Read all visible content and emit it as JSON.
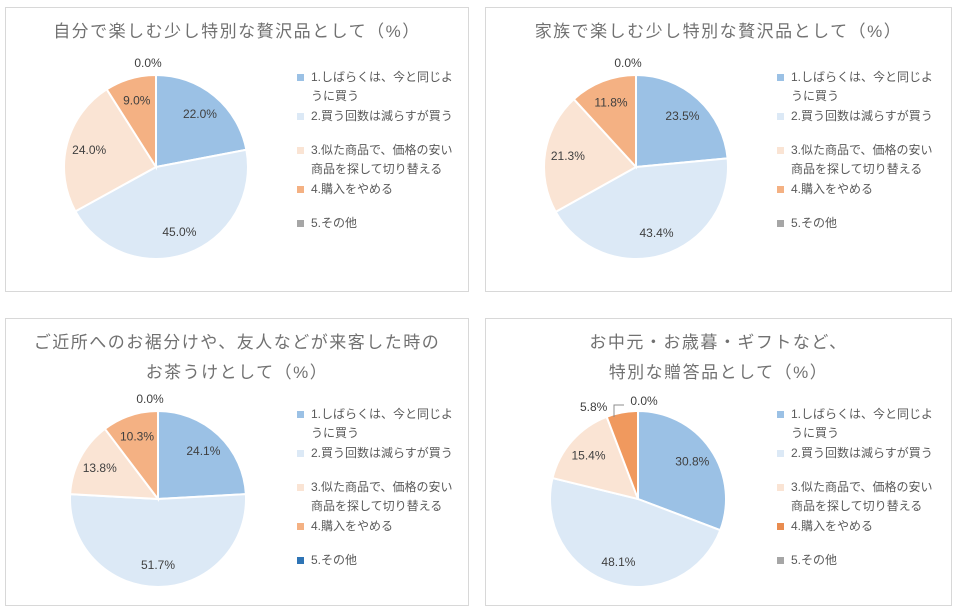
{
  "page": {
    "background": "#FFFFFF",
    "panel_border": "#D8D8D8",
    "title_color": "#717171",
    "data_label_color": "#3F3F3F",
    "legend_text_color": "#595959"
  },
  "chart_data": [
    {
      "type": "pie",
      "title": "自分で楽しむ少し特別な贅沢品として（%）",
      "title_lines": [
        "自分で楽しむ少し特別な贅沢品として（%）"
      ],
      "categories": [
        "1.しばらくは、今と同じように買う",
        "2.買う回数は減らすが買う",
        "3.似た商品で、価格の安い商品を探して切り替える",
        "4.購入をやめる",
        "5.その他"
      ],
      "values": [
        22.0,
        45.0,
        24.0,
        9.0,
        0.0
      ],
      "data_labels": [
        "22.0%",
        "45.0%",
        "24.0%",
        "9.0%",
        "0.0%"
      ],
      "slice_colors": [
        "#9BC1E5",
        "#DCE9F6",
        "#FAE4D4",
        "#F4B183",
        "#A6A6A6"
      ],
      "legend_marker_colors": [
        "#9BC1E5",
        "#DCE9F6",
        "#FAE4D4",
        "#F4B183",
        "#A6A6A6"
      ],
      "legend_position": "right",
      "start_angle_deg": 0,
      "direction": "clockwise"
    },
    {
      "type": "pie",
      "title": "家族で楽しむ少し特別な贅沢品として（%）",
      "title_lines": [
        "家族で楽しむ少し特別な贅沢品として（%）"
      ],
      "categories": [
        "1.しばらくは、今と同じように買う",
        "2.買う回数は減らすが買う",
        "3.似た商品で、価格の安い商品を探して切り替える",
        "4.購入をやめる",
        "5.その他"
      ],
      "values": [
        23.5,
        43.4,
        21.3,
        11.8,
        0.0
      ],
      "data_labels": [
        "23.5%",
        "43.4%",
        "21.3%",
        "11.8%",
        "0.0%"
      ],
      "slice_colors": [
        "#9BC1E5",
        "#DCE9F6",
        "#FAE4D4",
        "#F4B183",
        "#A6A6A6"
      ],
      "legend_marker_colors": [
        "#9BC1E5",
        "#DCE9F6",
        "#FAE4D4",
        "#F4B183",
        "#A6A6A6"
      ],
      "legend_position": "right",
      "start_angle_deg": 0,
      "direction": "clockwise"
    },
    {
      "type": "pie",
      "title": "ご近所へのお裾分けや、友人などが来客した時の お茶うけとして（%）",
      "title_lines": [
        "ご近所へのお裾分けや、友人などが来客した時の",
        "お茶うけとして（%）"
      ],
      "categories": [
        "1.しばらくは、今と同じように買う",
        "2.買う回数は減らすが買う",
        "3.似た商品で、価格の安い商品を探して切り替える",
        "4.購入をやめる",
        "5.その他"
      ],
      "values": [
        24.1,
        51.7,
        13.8,
        10.3,
        0.0
      ],
      "data_labels": [
        "24.1%",
        "51.7%",
        "13.8%",
        "10.3%",
        "0.0%"
      ],
      "slice_colors": [
        "#9BC1E5",
        "#DCE9F6",
        "#FAE4D4",
        "#F4B183",
        "#2E74B5"
      ],
      "legend_marker_colors": [
        "#9BC1E5",
        "#DCE9F6",
        "#FAE4D4",
        "#F4B183",
        "#2E74B5"
      ],
      "legend_position": "right",
      "start_angle_deg": 0,
      "direction": "clockwise"
    },
    {
      "type": "pie",
      "title": "お中元・お歳暮・ギフトなど、 特別な贈答品として（%）",
      "title_lines": [
        "お中元・お歳暮・ギフトなど、",
        "特別な贈答品として（%）"
      ],
      "categories": [
        "1.しばらくは、今と同じように買う",
        "2.買う回数は減らすが買う",
        "3.似た商品で、価格の安い商品を探して切り替える",
        "4.購入をやめる",
        "5.その他"
      ],
      "values": [
        30.8,
        48.1,
        15.4,
        5.8,
        0.0
      ],
      "data_labels": [
        "30.8%",
        "48.1%",
        "15.4%",
        "5.8%",
        "0.0%"
      ],
      "slice_colors": [
        "#9BC1E5",
        "#DCE9F6",
        "#FAE4D4",
        "#F0995E",
        "#A6A6A6"
      ],
      "legend_marker_colors": [
        "#9BC1E5",
        "#DCE9F6",
        "#FAE4D4",
        "#E98C4F",
        "#A6A6A6"
      ],
      "legend_position": "right",
      "start_angle_deg": 0,
      "direction": "clockwise",
      "zero_label_leader": true,
      "zero_label_dx": 14,
      "zero_label_dy": 2
    }
  ]
}
